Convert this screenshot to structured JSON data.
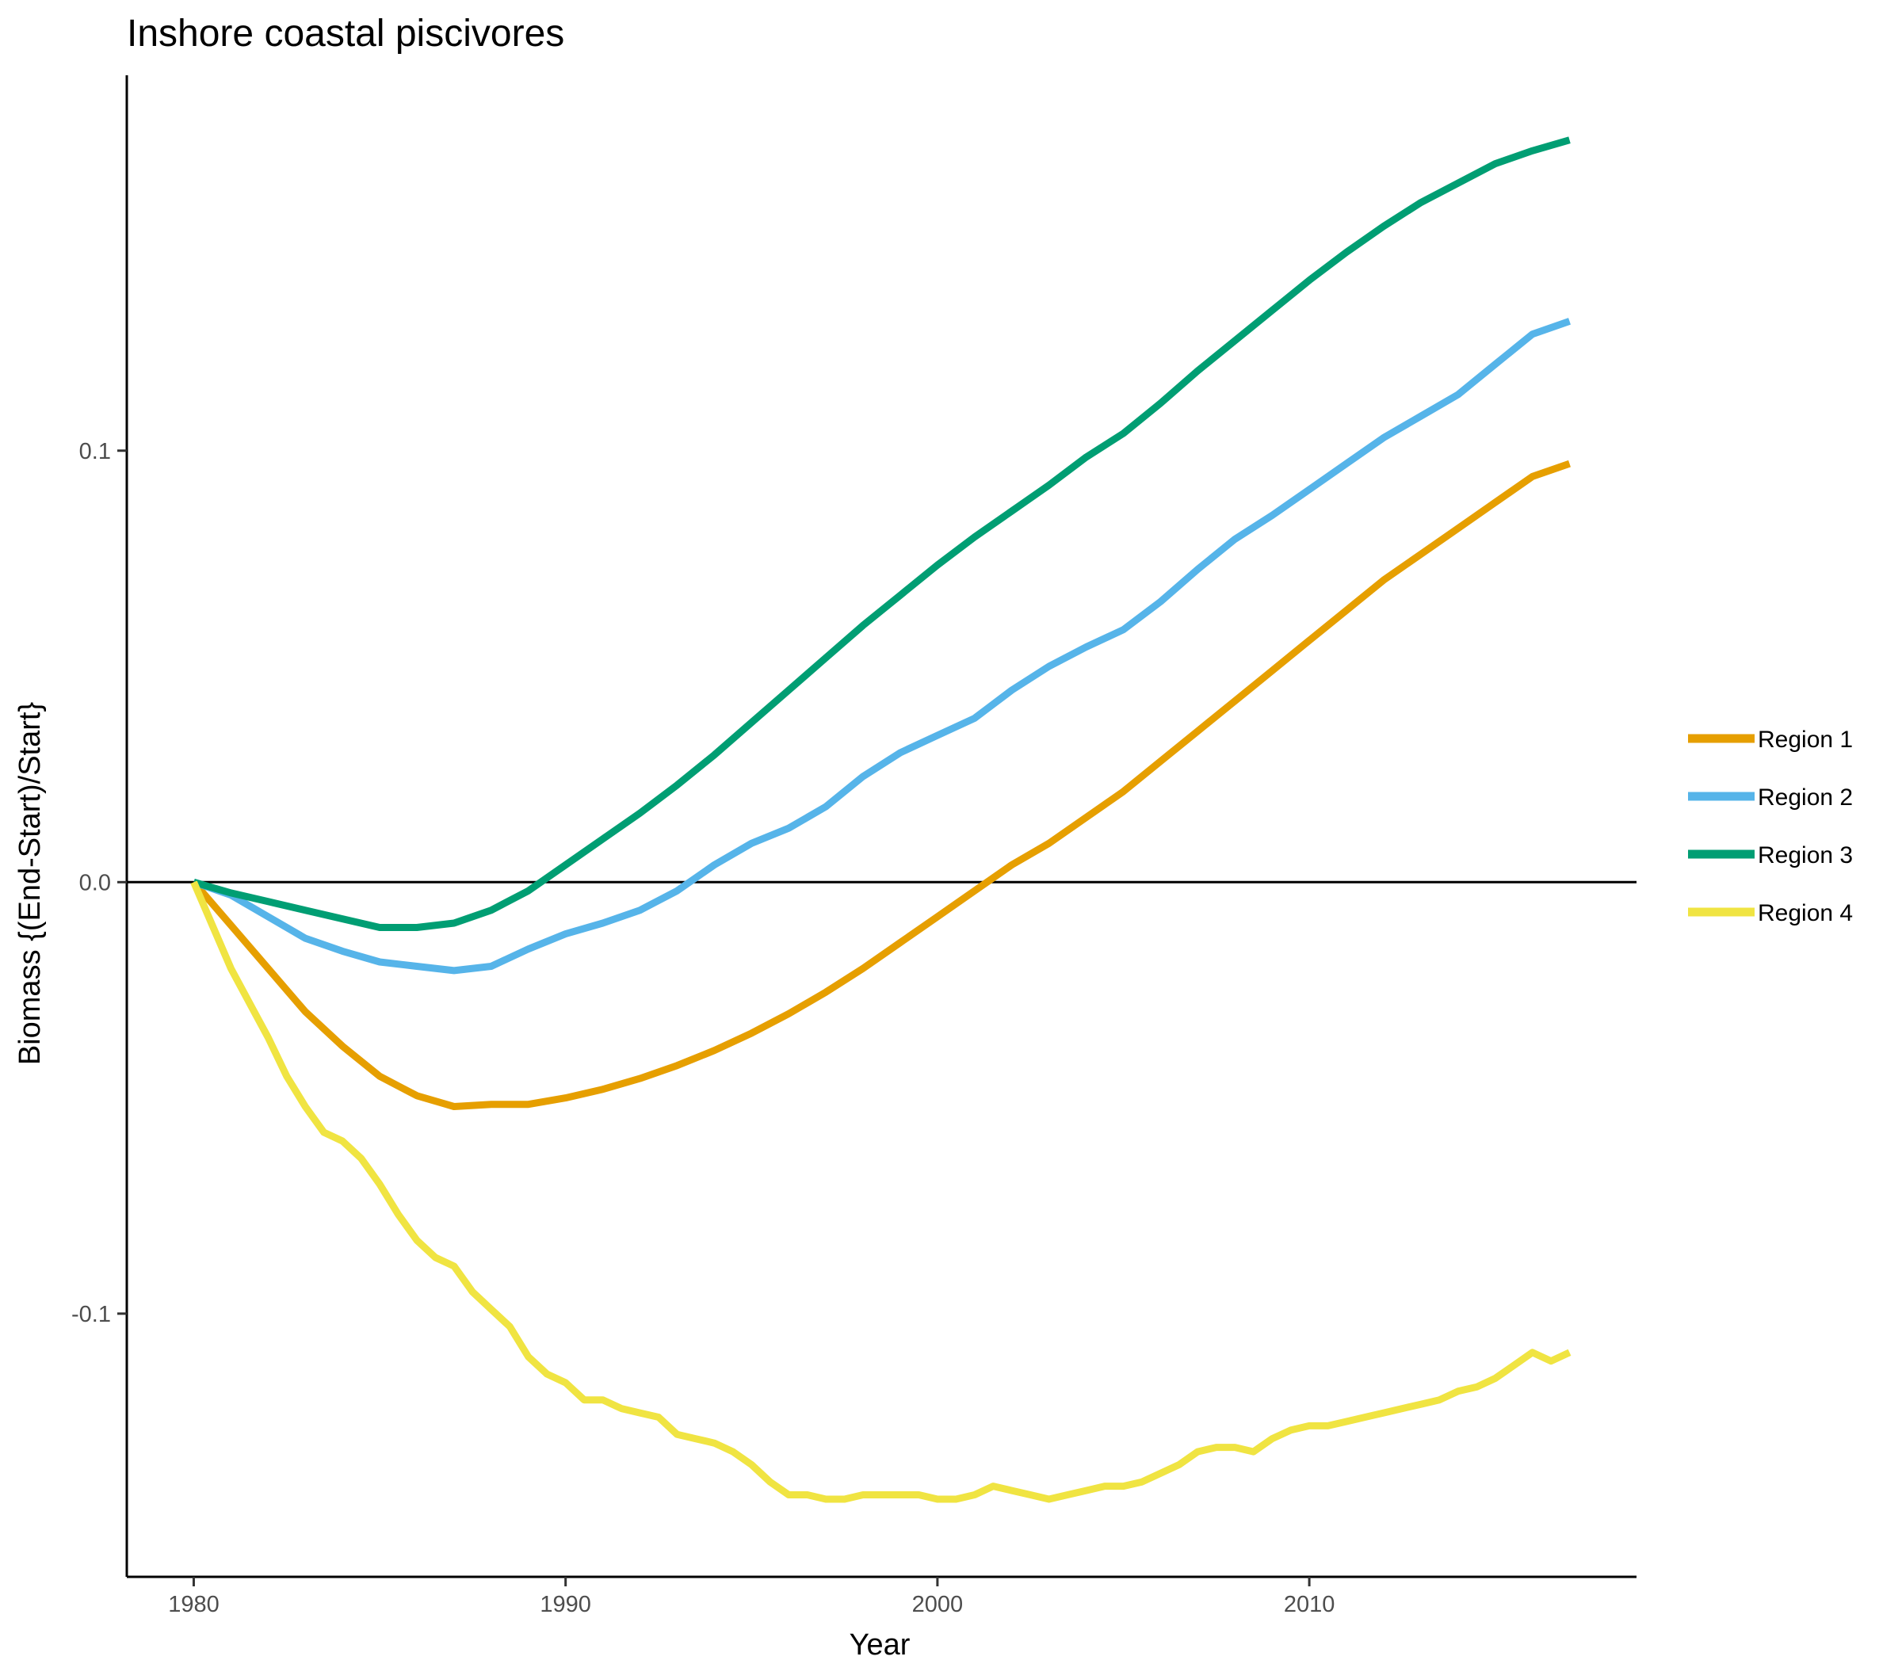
{
  "chart_data": {
    "type": "line",
    "title": "Inshore coastal piscivores",
    "xlabel": "Year",
    "ylabel": "Biomass {(End-Start)/Start}",
    "xlim": [
      1978.2,
      2018.8
    ],
    "ylim": [
      -0.161,
      0.187
    ],
    "x_ticks": [
      1980,
      1990,
      2000,
      2010
    ],
    "x_tick_labels": [
      "1980",
      "1990",
      "2000",
      "2010"
    ],
    "y_ticks": [
      -0.1,
      0.0,
      0.1
    ],
    "y_tick_labels": [
      "-0.1",
      "0.0",
      "0.1"
    ],
    "reference_line_y": 0,
    "grid": false,
    "legend_position": "right",
    "series": [
      {
        "name": "Region 1",
        "color": "#E69F00",
        "points": [
          [
            1980,
            0
          ],
          [
            1981,
            -0.01
          ],
          [
            1982,
            -0.02
          ],
          [
            1983,
            -0.03
          ],
          [
            1984,
            -0.038
          ],
          [
            1985,
            -0.045
          ],
          [
            1986,
            -0.0495
          ],
          [
            1987,
            -0.052
          ],
          [
            1988,
            -0.0515
          ],
          [
            1989,
            -0.0515
          ],
          [
            1990,
            -0.05
          ],
          [
            1991,
            -0.048
          ],
          [
            1992,
            -0.0455
          ],
          [
            1993,
            -0.0425
          ],
          [
            1994,
            -0.039
          ],
          [
            1995,
            -0.035
          ],
          [
            1996,
            -0.0305
          ],
          [
            1997,
            -0.0255
          ],
          [
            1998,
            -0.02
          ],
          [
            1999,
            -0.014
          ],
          [
            2000,
            -0.008
          ],
          [
            2001,
            -0.002
          ],
          [
            2002,
            0.004
          ],
          [
            2003,
            0.009
          ],
          [
            2004,
            0.015
          ],
          [
            2005,
            0.021
          ],
          [
            2006,
            0.028
          ],
          [
            2007,
            0.035
          ],
          [
            2008,
            0.042
          ],
          [
            2009,
            0.049
          ],
          [
            2010,
            0.056
          ],
          [
            2011,
            0.063
          ],
          [
            2012,
            0.07
          ],
          [
            2013,
            0.076
          ],
          [
            2014,
            0.082
          ],
          [
            2015,
            0.088
          ],
          [
            2016,
            0.094
          ],
          [
            2017,
            0.097
          ]
        ]
      },
      {
        "name": "Region 2",
        "color": "#56B4E9",
        "points": [
          [
            1980,
            0
          ],
          [
            1981,
            -0.003
          ],
          [
            1982,
            -0.008
          ],
          [
            1983,
            -0.013
          ],
          [
            1984,
            -0.016
          ],
          [
            1985,
            -0.0185
          ],
          [
            1986,
            -0.0195
          ],
          [
            1987,
            -0.0205
          ],
          [
            1988,
            -0.0195
          ],
          [
            1989,
            -0.0155
          ],
          [
            1990,
            -0.012
          ],
          [
            1991,
            -0.0095
          ],
          [
            1992,
            -0.0065
          ],
          [
            1993,
            -0.002
          ],
          [
            1994,
            0.004
          ],
          [
            1995,
            0.009
          ],
          [
            1996,
            0.0125
          ],
          [
            1997,
            0.0175
          ],
          [
            1998,
            0.0245
          ],
          [
            1999,
            0.03
          ],
          [
            2000,
            0.034
          ],
          [
            2001,
            0.038
          ],
          [
            2002,
            0.0445
          ],
          [
            2003,
            0.05
          ],
          [
            2004,
            0.0545
          ],
          [
            2005,
            0.0585
          ],
          [
            2006,
            0.065
          ],
          [
            2007,
            0.0725
          ],
          [
            2008,
            0.0795
          ],
          [
            2009,
            0.085
          ],
          [
            2010,
            0.091
          ],
          [
            2011,
            0.097
          ],
          [
            2012,
            0.103
          ],
          [
            2013,
            0.108
          ],
          [
            2014,
            0.113
          ],
          [
            2015,
            0.12
          ],
          [
            2016,
            0.127
          ],
          [
            2017,
            0.13
          ]
        ]
      },
      {
        "name": "Region 3",
        "color": "#009E73",
        "points": [
          [
            1980,
            0
          ],
          [
            1981,
            -0.0025
          ],
          [
            1982,
            -0.0045
          ],
          [
            1983,
            -0.0065
          ],
          [
            1984,
            -0.0085
          ],
          [
            1985,
            -0.0105
          ],
          [
            1986,
            -0.0105
          ],
          [
            1987,
            -0.0095
          ],
          [
            1988,
            -0.0065
          ],
          [
            1989,
            -0.002
          ],
          [
            1990,
            0.004
          ],
          [
            1991,
            0.01
          ],
          [
            1992,
            0.016
          ],
          [
            1993,
            0.0225
          ],
          [
            1994,
            0.0295
          ],
          [
            1995,
            0.037
          ],
          [
            1996,
            0.0445
          ],
          [
            1997,
            0.052
          ],
          [
            1998,
            0.0595
          ],
          [
            1999,
            0.0665
          ],
          [
            2000,
            0.0735
          ],
          [
            2001,
            0.08
          ],
          [
            2002,
            0.086
          ],
          [
            2003,
            0.092
          ],
          [
            2004,
            0.0985
          ],
          [
            2005,
            0.104
          ],
          [
            2006,
            0.111
          ],
          [
            2007,
            0.1185
          ],
          [
            2008,
            0.1255
          ],
          [
            2009,
            0.1325
          ],
          [
            2010,
            0.1395
          ],
          [
            2011,
            0.146
          ],
          [
            2012,
            0.152
          ],
          [
            2013,
            0.1575
          ],
          [
            2014,
            0.162
          ],
          [
            2015,
            0.1665
          ],
          [
            2016,
            0.1695
          ],
          [
            2017,
            0.172
          ]
        ]
      },
      {
        "name": "Region 4",
        "color": "#F0E442",
        "points": [
          [
            1980,
            0
          ],
          [
            1980.5,
            -0.01
          ],
          [
            1981,
            -0.02
          ],
          [
            1981.5,
            -0.028
          ],
          [
            1982,
            -0.036
          ],
          [
            1982.5,
            -0.045
          ],
          [
            1983,
            -0.052
          ],
          [
            1983.5,
            -0.058
          ],
          [
            1984,
            -0.06
          ],
          [
            1984.5,
            -0.064
          ],
          [
            1985,
            -0.07
          ],
          [
            1985.5,
            -0.077
          ],
          [
            1986,
            -0.083
          ],
          [
            1986.5,
            -0.087
          ],
          [
            1987,
            -0.089
          ],
          [
            1987.5,
            -0.095
          ],
          [
            1988,
            -0.099
          ],
          [
            1988.5,
            -0.103
          ],
          [
            1989,
            -0.11
          ],
          [
            1989.5,
            -0.114
          ],
          [
            1990,
            -0.116
          ],
          [
            1990.5,
            -0.12
          ],
          [
            1991,
            -0.12
          ],
          [
            1991.5,
            -0.122
          ],
          [
            1992,
            -0.123
          ],
          [
            1992.5,
            -0.124
          ],
          [
            1993,
            -0.128
          ],
          [
            1993.5,
            -0.129
          ],
          [
            1994,
            -0.13
          ],
          [
            1994.5,
            -0.132
          ],
          [
            1995,
            -0.135
          ],
          [
            1995.5,
            -0.139
          ],
          [
            1996,
            -0.142
          ],
          [
            1996.5,
            -0.142
          ],
          [
            1997,
            -0.143
          ],
          [
            1997.5,
            -0.143
          ],
          [
            1998,
            -0.142
          ],
          [
            1998.5,
            -0.142
          ],
          [
            1999,
            -0.142
          ],
          [
            1999.5,
            -0.142
          ],
          [
            2000,
            -0.143
          ],
          [
            2000.5,
            -0.143
          ],
          [
            2001,
            -0.142
          ],
          [
            2001.5,
            -0.14
          ],
          [
            2002,
            -0.141
          ],
          [
            2002.5,
            -0.142
          ],
          [
            2003,
            -0.143
          ],
          [
            2003.5,
            -0.142
          ],
          [
            2004,
            -0.141
          ],
          [
            2004.5,
            -0.14
          ],
          [
            2005,
            -0.14
          ],
          [
            2005.5,
            -0.139
          ],
          [
            2006,
            -0.137
          ],
          [
            2006.5,
            -0.135
          ],
          [
            2007,
            -0.132
          ],
          [
            2007.5,
            -0.131
          ],
          [
            2008,
            -0.131
          ],
          [
            2008.5,
            -0.132
          ],
          [
            2009,
            -0.129
          ],
          [
            2009.5,
            -0.127
          ],
          [
            2010,
            -0.126
          ],
          [
            2010.5,
            -0.126
          ],
          [
            2011,
            -0.125
          ],
          [
            2011.5,
            -0.124
          ],
          [
            2012,
            -0.123
          ],
          [
            2012.5,
            -0.122
          ],
          [
            2013,
            -0.121
          ],
          [
            2013.5,
            -0.12
          ],
          [
            2014,
            -0.118
          ],
          [
            2014.5,
            -0.117
          ],
          [
            2015,
            -0.115
          ],
          [
            2015.5,
            -0.112
          ],
          [
            2016,
            -0.109
          ],
          [
            2016.5,
            -0.111
          ],
          [
            2017,
            -0.109
          ]
        ]
      }
    ]
  }
}
